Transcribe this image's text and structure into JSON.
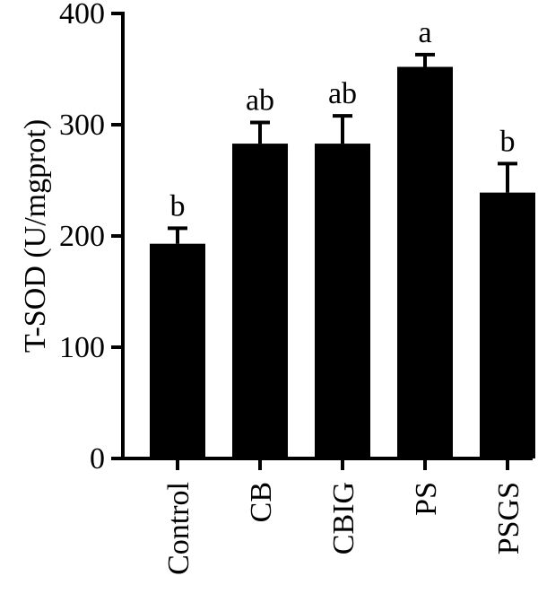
{
  "chart_data": {
    "type": "bar",
    "categories": [
      "Control",
      "CB",
      "CBIG",
      "PS",
      "PSGS"
    ],
    "values": [
      193,
      283,
      283,
      352,
      239
    ],
    "error_upper": [
      14,
      19,
      25,
      11,
      26
    ],
    "significance": [
      "b",
      "ab",
      "ab",
      "a",
      "b"
    ],
    "ylabel": "T-SOD (U/mgprot)",
    "xlabel": "",
    "ylim": [
      0,
      400
    ],
    "yticks": [
      0,
      100,
      200,
      300,
      400
    ],
    "grid": false,
    "colors": {
      "bar": "#000000",
      "axis": "#000000"
    }
  }
}
